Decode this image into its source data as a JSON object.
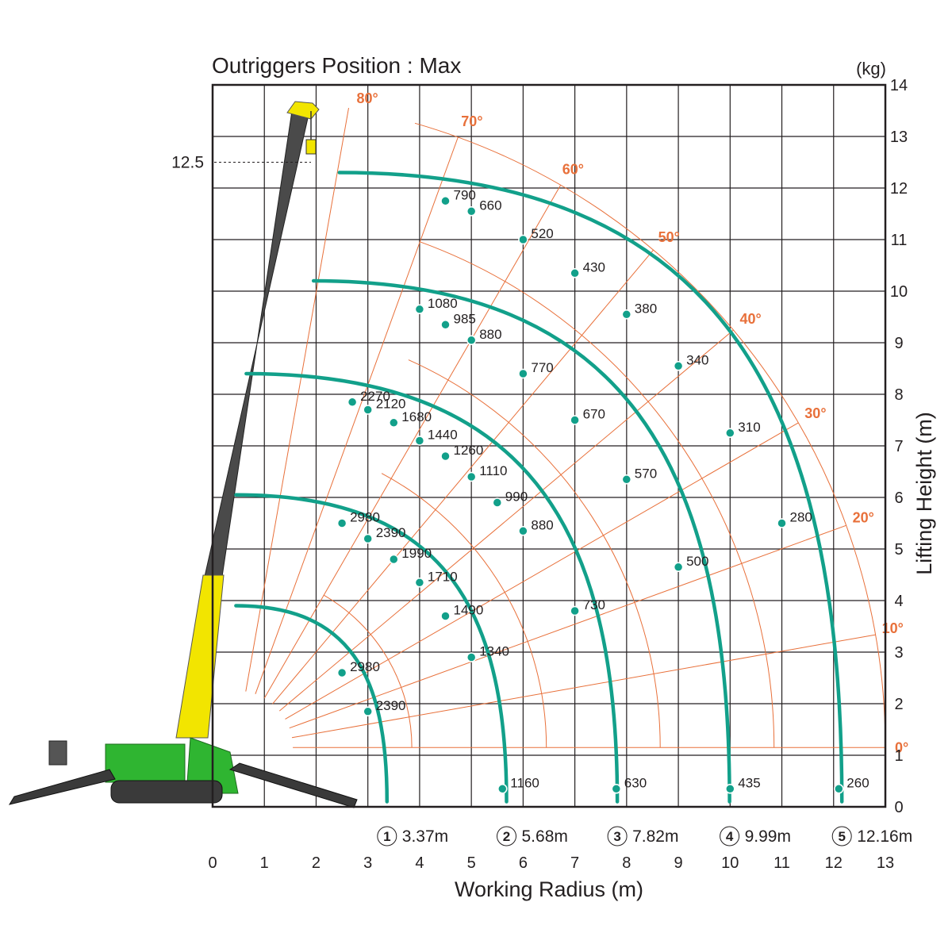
{
  "chart_data": {
    "type": "load chart",
    "title": "Outriggers Position : Max",
    "unit": "(kg)",
    "xlabel": "Working Radius (m)",
    "ylabel": "Lifting Height (m)",
    "xlim": [
      0,
      13
    ],
    "ylim": [
      0,
      14
    ],
    "x_ticks": [
      "0",
      "1",
      "2",
      "3",
      "4",
      "5",
      "6",
      "7",
      "8",
      "9",
      "10",
      "11",
      "12",
      "13"
    ],
    "y_ticks": [
      "0",
      "1",
      "2",
      "3",
      "4",
      "5",
      "6",
      "7",
      "8",
      "9",
      "10",
      "11",
      "12",
      "13",
      "14"
    ],
    "max_height_label": "12.5",
    "max_height": 12.5,
    "angles": [
      "80°",
      "70°",
      "60°",
      "50°",
      "40°",
      "30°",
      "20°",
      "10°",
      "0°"
    ],
    "boom_lengths": [
      {
        "num": "1",
        "label": "3.37m",
        "radius": 3.37
      },
      {
        "num": "2",
        "label": "5.68m",
        "radius": 5.68
      },
      {
        "num": "3",
        "label": "7.82m",
        "radius": 7.82
      },
      {
        "num": "4",
        "label": "9.99m",
        "radius": 9.99
      },
      {
        "num": "5",
        "label": "12.16m",
        "radius": 12.16
      }
    ],
    "series": [
      {
        "boom": "1",
        "points": [
          {
            "x": 2.5,
            "y": 2.6,
            "load": "2980"
          },
          {
            "x": 3.0,
            "y": 1.85,
            "load": "2390"
          }
        ]
      },
      {
        "boom": "2",
        "points": [
          {
            "x": 2.5,
            "y": 5.5,
            "load": "2980"
          },
          {
            "x": 3.0,
            "y": 5.2,
            "load": "2390"
          },
          {
            "x": 3.5,
            "y": 4.8,
            "load": "1990"
          },
          {
            "x": 4.0,
            "y": 4.35,
            "load": "1710"
          },
          {
            "x": 4.5,
            "y": 3.7,
            "load": "1490"
          },
          {
            "x": 5.0,
            "y": 2.9,
            "load": "1340"
          },
          {
            "x": 5.6,
            "y": 0.35,
            "load": "1160"
          }
        ]
      },
      {
        "boom": "3",
        "points": [
          {
            "x": 2.7,
            "y": 7.85,
            "load": "2270"
          },
          {
            "x": 3.0,
            "y": 7.7,
            "load": "2120"
          },
          {
            "x": 3.5,
            "y": 7.45,
            "load": "1680"
          },
          {
            "x": 4.0,
            "y": 7.1,
            "load": "1440"
          },
          {
            "x": 4.5,
            "y": 6.8,
            "load": "1260"
          },
          {
            "x": 5.0,
            "y": 6.4,
            "load": "1110"
          },
          {
            "x": 5.5,
            "y": 5.9,
            "load": "990"
          },
          {
            "x": 6.0,
            "y": 5.35,
            "load": "880"
          },
          {
            "x": 7.0,
            "y": 3.8,
            "load": "730"
          },
          {
            "x": 7.8,
            "y": 0.35,
            "load": "630"
          }
        ]
      },
      {
        "boom": "4",
        "points": [
          {
            "x": 4.0,
            "y": 9.65,
            "load": "1080"
          },
          {
            "x": 4.5,
            "y": 9.35,
            "load": "985"
          },
          {
            "x": 5.0,
            "y": 9.05,
            "load": "880"
          },
          {
            "x": 6.0,
            "y": 8.4,
            "load": "770"
          },
          {
            "x": 7.0,
            "y": 7.5,
            "load": "670"
          },
          {
            "x": 8.0,
            "y": 6.35,
            "load": "570"
          },
          {
            "x": 9.0,
            "y": 4.65,
            "load": "500"
          },
          {
            "x": 10.0,
            "y": 0.35,
            "load": "435"
          }
        ]
      },
      {
        "boom": "5",
        "points": [
          {
            "x": 4.5,
            "y": 11.75,
            "load": "790"
          },
          {
            "x": 5.0,
            "y": 11.55,
            "load": "660"
          },
          {
            "x": 6.0,
            "y": 11.0,
            "load": "520"
          },
          {
            "x": 7.0,
            "y": 10.35,
            "load": "430"
          },
          {
            "x": 8.0,
            "y": 9.55,
            "load": "380"
          },
          {
            "x": 9.0,
            "y": 8.55,
            "load": "340"
          },
          {
            "x": 10.0,
            "y": 7.25,
            "load": "310"
          },
          {
            "x": 11.0,
            "y": 5.5,
            "load": "280"
          },
          {
            "x": 12.1,
            "y": 0.35,
            "load": "260"
          }
        ]
      }
    ]
  }
}
